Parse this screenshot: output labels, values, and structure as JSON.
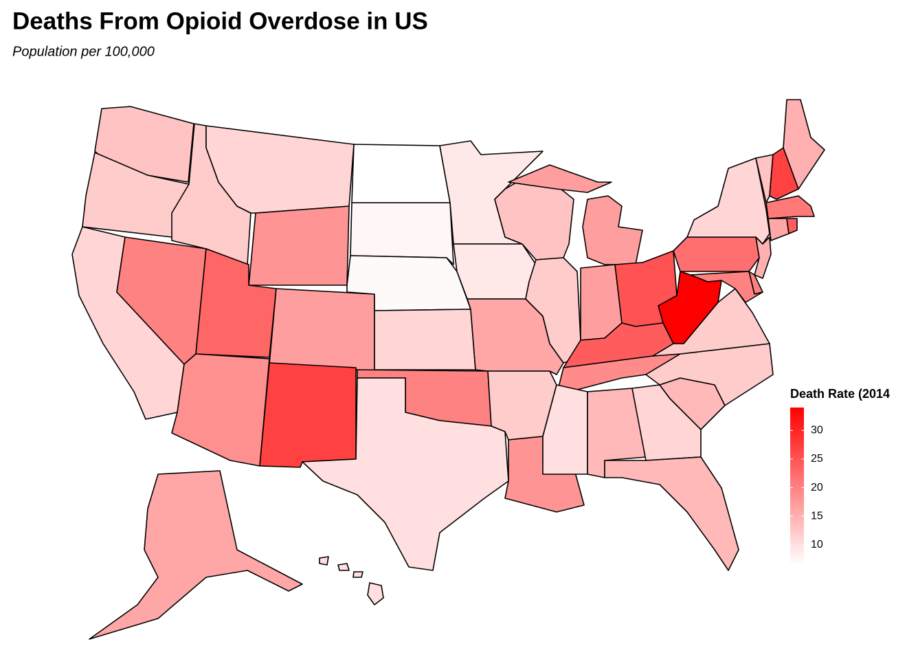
{
  "chart_data": {
    "type": "choropleth",
    "title": "Deaths From Opioid Overdose in US",
    "subtitle": "Population per 100,000",
    "legend_title": "Death Rate (2014",
    "values": [
      13,
      12,
      11,
      20,
      12,
      11,
      18,
      23,
      17,
      18.5,
      27,
      6.5,
      7.5,
      7,
      11,
      20,
      10,
      9,
      9,
      16,
      12,
      18,
      13,
      12,
      17,
      17,
      25,
      24,
      19,
      10,
      14,
      11,
      14,
      14,
      12,
      12,
      34,
      22,
      11,
      15,
      20,
      20,
      13,
      27,
      15,
      21,
      16,
      24,
      16,
      10
    ],
    "lim": [
      6.5,
      34
    ],
    "ticks": [
      10,
      15,
      20,
      25,
      30
    ],
    "low_color": "#ffffff",
    "high_color": "#ff0000"
  }
}
